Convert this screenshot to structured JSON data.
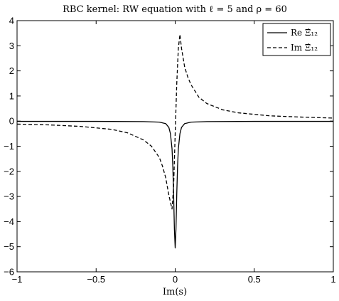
{
  "chart_data": {
    "type": "line",
    "title": "RBC kernel: RW equation with ℓ = 5 and ρ = 60",
    "xlabel": "Im(s)",
    "ylabel": "",
    "xlim": [
      -1,
      1
    ],
    "ylim": [
      -6,
      4
    ],
    "xticks": [
      -1,
      -0.5,
      0,
      0.5,
      1
    ],
    "xtick_labels": [
      "−1",
      "−0.5",
      "0",
      "0.5",
      "1"
    ],
    "yticks": [
      -6,
      -5,
      -4,
      -3,
      -2,
      -1,
      0,
      1,
      2,
      3,
      4
    ],
    "ytick_labels": [
      "−6",
      "−5",
      "−4",
      "−3",
      "−2",
      "−1",
      "0",
      "1",
      "2",
      "3",
      "4"
    ],
    "grid": false,
    "legend_position": "top-right",
    "series": [
      {
        "name": "Re Ξ̂₁₂",
        "style": "solid",
        "color": "#000000",
        "x": [
          -1,
          -0.5,
          -0.2,
          -0.1,
          -0.06,
          -0.04,
          -0.03,
          -0.02,
          -0.015,
          -0.01,
          -0.005,
          0,
          0.005,
          0.01,
          0.015,
          0.02,
          0.03,
          0.04,
          0.06,
          0.1,
          0.2,
          0.5,
          1
        ],
        "y": [
          -0.01,
          -0.01,
          -0.02,
          -0.04,
          -0.1,
          -0.25,
          -0.5,
          -1.1,
          -1.8,
          -2.9,
          -4.3,
          -5.05,
          -4.3,
          -2.9,
          -1.8,
          -1.1,
          -0.5,
          -0.25,
          -0.1,
          -0.04,
          -0.02,
          -0.01,
          -0.01
        ]
      },
      {
        "name": "Im Ξ̂₁₂",
        "style": "dashed",
        "color": "#000000",
        "x": [
          -1,
          -0.8,
          -0.6,
          -0.4,
          -0.3,
          -0.2,
          -0.15,
          -0.1,
          -0.08,
          -0.06,
          -0.04,
          -0.02,
          -0.01,
          0,
          0.01,
          0.02,
          0.03,
          0.04,
          0.06,
          0.08,
          0.1,
          0.15,
          0.2,
          0.3,
          0.4,
          0.6,
          0.8,
          1
        ],
        "y": [
          -0.12,
          -0.15,
          -0.21,
          -0.33,
          -0.47,
          -0.75,
          -1.0,
          -1.45,
          -1.8,
          -2.25,
          -2.95,
          -3.5,
          -2.6,
          -0.5,
          1.5,
          2.9,
          3.45,
          2.9,
          2.15,
          1.75,
          1.45,
          0.95,
          0.7,
          0.45,
          0.33,
          0.21,
          0.16,
          0.12
        ]
      }
    ]
  }
}
